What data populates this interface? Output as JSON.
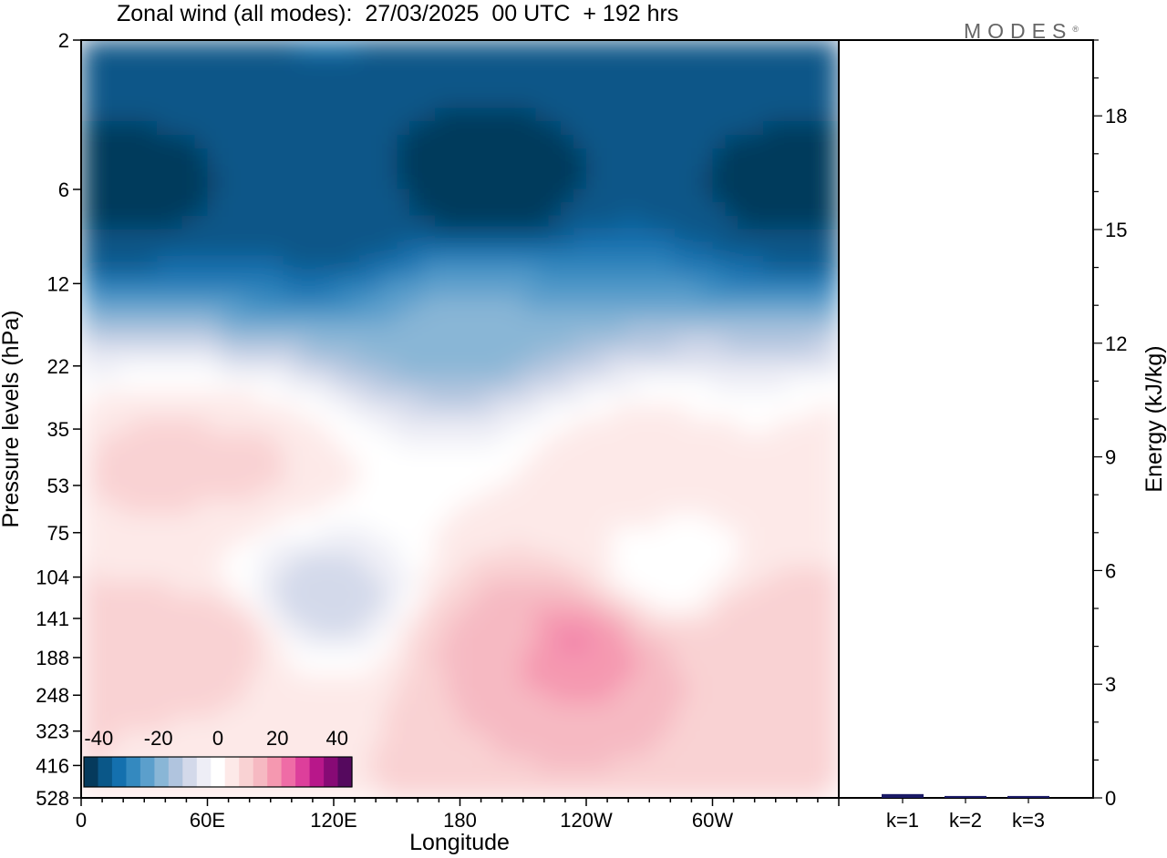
{
  "header": {
    "title": "Zonal wind (all modes):  27/03/2025  00 UTC  + 192 hrs",
    "brand": "MODES",
    "brand_mark": "®"
  },
  "colors": {
    "frame": "#000000",
    "background": "#ffffff",
    "energy_bar": "#1a1a66",
    "palette": [
      "#053a5c",
      "#0a5788",
      "#1470ae",
      "#3489bf",
      "#5b9fcc",
      "#89b6d6",
      "#b0c4de",
      "#d3d9ea",
      "#eeeef6",
      "#ffffff",
      "#fde9e8",
      "#f9d2d3",
      "#f6b9c2",
      "#f598b0",
      "#ef6ca6",
      "#dd3f9b",
      "#b8178a",
      "#870a75",
      "#55095e"
    ]
  },
  "chart_data": [
    {
      "type": "heatmap",
      "title": "Zonal wind (all modes):  27/03/2025  00 UTC  + 192 hrs",
      "xlabel": "Longitude",
      "ylabel": "Pressure levels (hPa)",
      "x_ticks": [
        "0",
        "60E",
        "120E",
        "180",
        "120W",
        "60W"
      ],
      "x_tick_degrees": [
        0,
        60,
        120,
        180,
        240,
        300
      ],
      "xlim": [
        0,
        360
      ],
      "y_ticks": [
        2,
        6,
        12,
        22,
        35,
        53,
        75,
        104,
        141,
        188,
        248,
        323,
        416,
        528
      ],
      "y_scale": "log",
      "ylim": [
        528,
        2
      ],
      "colorbar": {
        "ticks": [
          "-40",
          "-20",
          "0",
          "20",
          "40"
        ],
        "tick_values": [
          -40,
          -20,
          0,
          20,
          40
        ],
        "range": [
          -45,
          45
        ]
      },
      "features": [
        {
          "lon": 190,
          "p": 6,
          "value": -45
        },
        {
          "lon": 30,
          "p": 6,
          "value": -42
        },
        {
          "lon": 335,
          "p": 6,
          "value": -42
        },
        {
          "lon": 120,
          "p": 8,
          "value": -38
        },
        {
          "lon": 180,
          "p": 16,
          "value": -20
        },
        {
          "lon": 40,
          "p": 45,
          "value": 9
        },
        {
          "lon": 75,
          "p": 45,
          "value": 8
        },
        {
          "lon": 260,
          "p": 45,
          "value": 6
        },
        {
          "lon": 115,
          "p": 120,
          "value": -12
        },
        {
          "lon": 60,
          "p": 160,
          "value": 11
        },
        {
          "lon": 232,
          "p": 170,
          "value": 22
        },
        {
          "lon": 200,
          "p": 160,
          "value": 14
        },
        {
          "lon": 328,
          "p": 140,
          "value": 10
        },
        {
          "lon": 280,
          "p": 100,
          "value": -2
        }
      ]
    },
    {
      "type": "bar",
      "ylabel": "Energy (kJ/kg)",
      "categories": [
        "k=1",
        "k=2",
        "k=3"
      ],
      "values": [
        0.1,
        0.05,
        0.05
      ],
      "ylim": [
        0,
        20
      ],
      "y_ticks": [
        0,
        3,
        6,
        9,
        12,
        15,
        18
      ]
    }
  ]
}
